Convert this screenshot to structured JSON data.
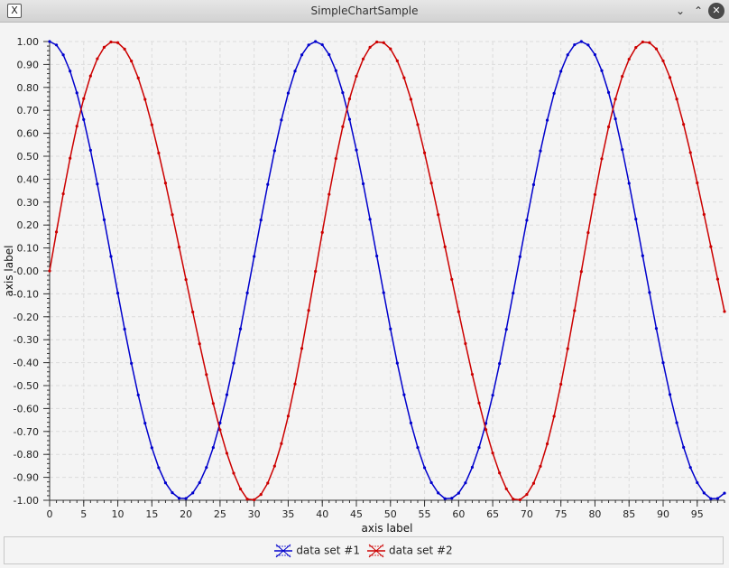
{
  "window": {
    "title": "SimpleChartSample"
  },
  "icons": {
    "app": "x-window-icon",
    "minimize": "chevron-down-icon",
    "maximize": "chevron-up-icon",
    "close": "close-icon"
  },
  "chart_data": {
    "type": "line",
    "xlabel": "axis label",
    "ylabel": "axis label",
    "xlim": [
      0,
      99
    ],
    "ylim": [
      -1.0,
      1.0
    ],
    "x_ticks": [
      0,
      5,
      10,
      15,
      20,
      25,
      30,
      35,
      40,
      45,
      50,
      55,
      60,
      65,
      70,
      75,
      80,
      85,
      90,
      95
    ],
    "y_ticks": [
      "1.00",
      "0.90",
      "0.80",
      "0.70",
      "0.60",
      "0.50",
      "0.40",
      "0.30",
      "0.20",
      "0.10",
      "-0.00",
      "-0.10",
      "-0.20",
      "-0.30",
      "-0.40",
      "-0.50",
      "-0.60",
      "-0.70",
      "-0.80",
      "-0.90",
      "-1.00"
    ],
    "grid": true,
    "legend_position": "bottom",
    "series": [
      {
        "name": "data set #1",
        "color": "#0000cc",
        "function": "cos(2*pi*x/36.6)",
        "x": [
          0,
          1,
          2,
          3,
          4,
          5,
          6,
          7,
          8,
          9,
          10,
          11,
          12,
          13,
          14,
          15,
          16,
          17,
          18,
          19,
          20,
          21,
          22,
          23,
          24,
          25,
          26,
          27,
          28,
          29,
          30,
          31,
          32,
          33,
          34,
          35,
          36,
          37,
          38,
          39,
          40,
          41,
          42,
          43,
          44,
          45,
          46,
          47,
          48,
          49,
          50,
          51,
          52,
          53,
          54,
          55,
          56,
          57,
          58,
          59,
          60,
          61,
          62,
          63,
          64,
          65,
          66,
          67,
          68,
          69,
          70,
          71,
          72,
          73,
          74,
          75,
          76,
          77,
          78,
          79,
          80,
          81,
          82,
          83,
          84,
          85,
          86,
          87,
          88,
          89,
          90,
          91,
          92,
          93,
          94,
          95,
          96,
          97,
          98,
          99
        ],
        "y": [
          1.0,
          0.985,
          0.942,
          0.871,
          0.776,
          0.66,
          0.526,
          0.379,
          0.223,
          0.063,
          -0.097,
          -0.254,
          -0.403,
          -0.541,
          -0.664,
          -0.771,
          -0.858,
          -0.924,
          -0.967,
          -0.991,
          -0.992,
          -0.968,
          -0.923,
          -0.857,
          -0.77,
          -0.663,
          -0.54,
          -0.402,
          -0.253,
          -0.096,
          0.063,
          0.222,
          0.377,
          0.524,
          0.658,
          0.775,
          0.871,
          0.942,
          0.985,
          1.0,
          0.986,
          0.943,
          0.873,
          0.777,
          0.661,
          0.527,
          0.38,
          0.225,
          0.065,
          -0.095,
          -0.253,
          -0.402,
          -0.54,
          -0.663,
          -0.77,
          -0.858,
          -0.923,
          -0.968,
          -0.993,
          -0.991,
          -0.969,
          -0.924,
          -0.856,
          -0.77,
          -0.665,
          -0.542,
          -0.404,
          -0.255,
          -0.097,
          0.062,
          0.221,
          0.376,
          0.523,
          0.657,
          0.774,
          0.87,
          0.942,
          0.986,
          1.0,
          0.985,
          0.943,
          0.873,
          0.778,
          0.663,
          0.529,
          0.382,
          0.226,
          0.066,
          -0.094,
          -0.251,
          -0.4,
          -0.539,
          -0.662,
          -0.769,
          -0.857,
          -0.923,
          -0.968,
          -0.993,
          -0.992,
          -0.969
        ]
      },
      {
        "name": "data set #2",
        "color": "#cc0000",
        "function": "sin(2*pi*x/36.6)",
        "x": [
          0,
          1,
          2,
          3,
          4,
          5,
          6,
          7,
          8,
          9,
          10,
          11,
          12,
          13,
          14,
          15,
          16,
          17,
          18,
          19,
          20,
          21,
          22,
          23,
          24,
          25,
          26,
          27,
          28,
          29,
          30,
          31,
          32,
          33,
          34,
          35,
          36,
          37,
          38,
          39,
          40,
          41,
          42,
          43,
          44,
          45,
          46,
          47,
          48,
          49,
          50,
          51,
          52,
          53,
          54,
          55,
          56,
          57,
          58,
          59,
          60,
          61,
          62,
          63,
          64,
          65,
          66,
          67,
          68,
          69,
          70,
          71,
          72,
          73,
          74,
          75,
          76,
          77,
          78,
          79,
          80,
          81,
          82,
          83,
          84,
          85,
          86,
          87,
          88,
          89,
          90,
          91,
          92,
          93,
          94,
          95,
          96,
          97,
          98,
          99
        ],
        "y": [
          0.0,
          0.17,
          0.336,
          0.491,
          0.631,
          0.751,
          0.85,
          0.925,
          0.975,
          0.998,
          0.995,
          0.967,
          0.915,
          0.841,
          0.748,
          0.637,
          0.514,
          0.383,
          0.245,
          0.104,
          -0.038,
          -0.179,
          -0.318,
          -0.452,
          -0.578,
          -0.693,
          -0.795,
          -0.882,
          -0.951,
          -0.995,
          -0.998,
          -0.975,
          -0.925,
          -0.851,
          -0.753,
          -0.633,
          -0.493,
          -0.338,
          -0.172,
          -0.002,
          0.168,
          0.334,
          0.49,
          0.629,
          0.75,
          0.849,
          0.924,
          0.975,
          0.998,
          0.995,
          0.968,
          0.916,
          0.842,
          0.748,
          0.638,
          0.515,
          0.383,
          0.245,
          0.105,
          -0.037,
          -0.178,
          -0.317,
          -0.451,
          -0.576,
          -0.692,
          -0.794,
          -0.881,
          -0.95,
          -0.995,
          -0.998,
          -0.975,
          -0.926,
          -0.852,
          -0.754,
          -0.634,
          -0.494,
          -0.339,
          -0.173,
          -0.003,
          0.167,
          0.333,
          0.489,
          0.628,
          0.749,
          0.848,
          0.923,
          0.974,
          0.998,
          0.995,
          0.968,
          0.916,
          0.843,
          0.749,
          0.639,
          0.516,
          0.384,
          0.246,
          0.106,
          -0.036,
          -0.177
        ]
      }
    ]
  }
}
